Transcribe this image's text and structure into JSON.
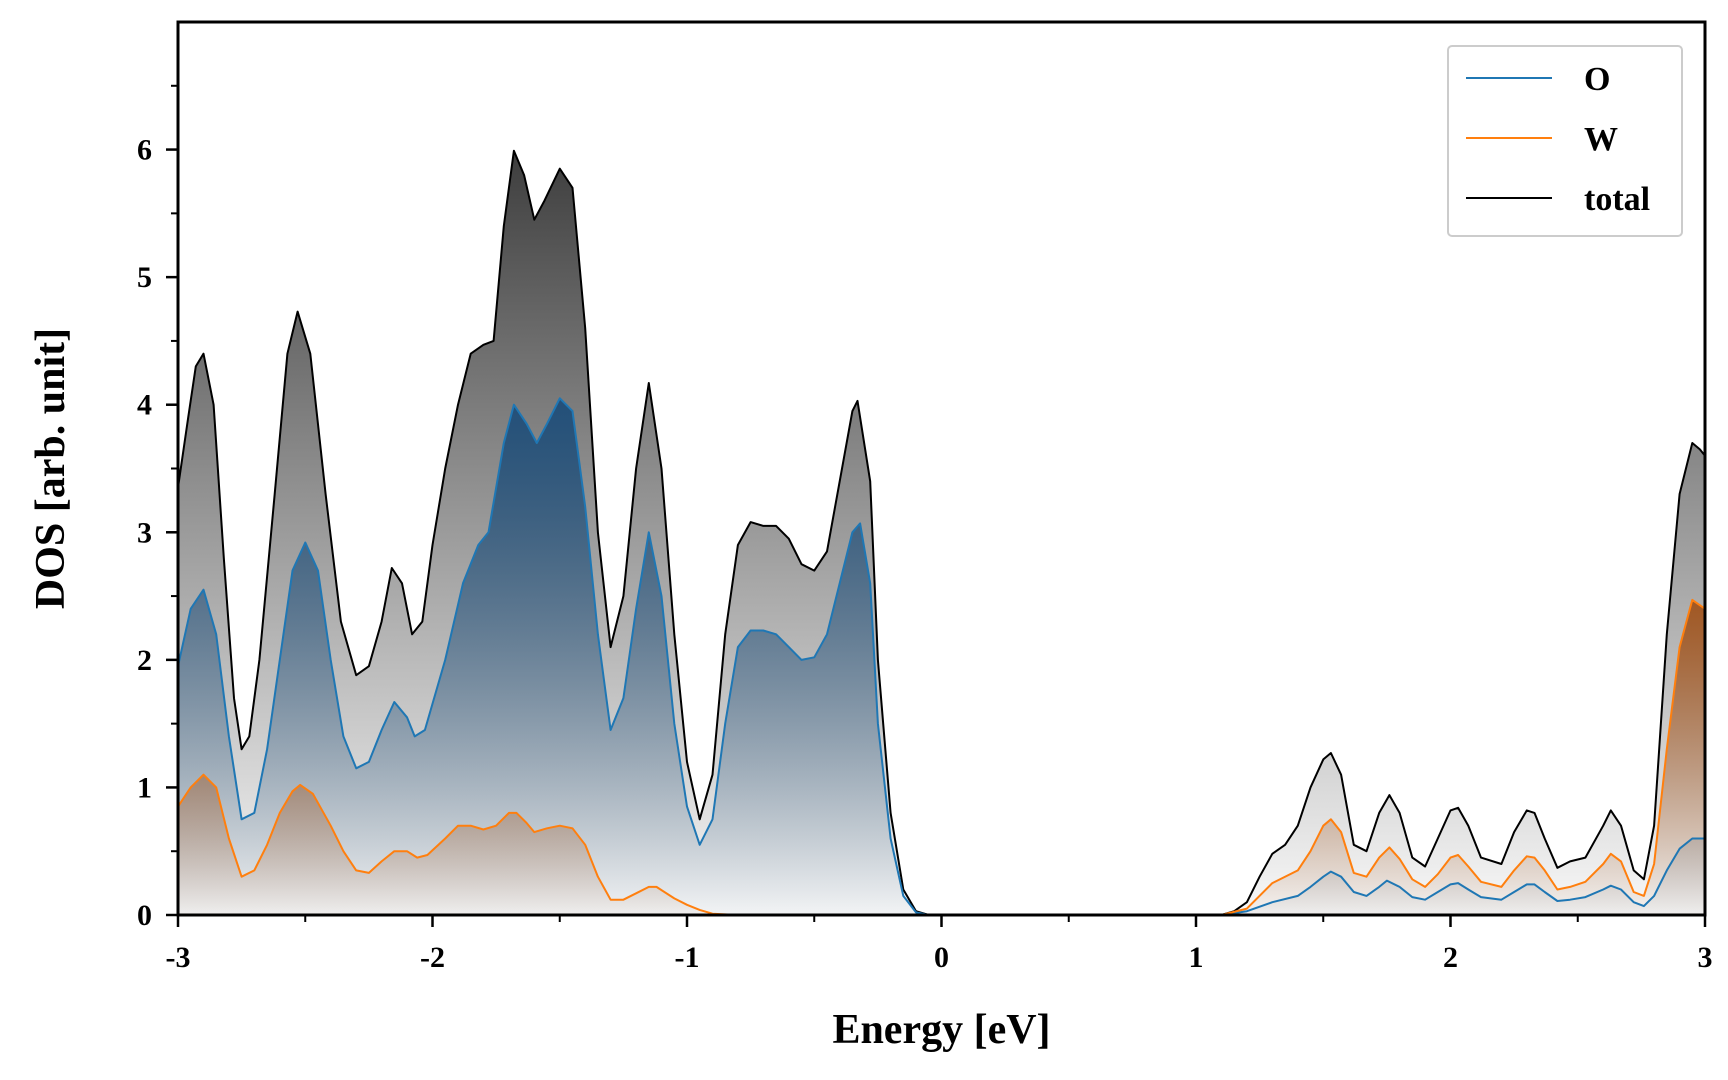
{
  "chart_data": {
    "type": "area",
    "xlabel": "Energy [eV]",
    "ylabel": "DOS [arb. unit]",
    "xlim": [
      -3,
      3
    ],
    "ylim": [
      0,
      7
    ],
    "x_ticks": [
      -3,
      -2,
      -1,
      0,
      1,
      2,
      3
    ],
    "x_tick_labels": [
      "-3",
      "-2",
      "-1",
      "0",
      "1",
      "2",
      "3"
    ],
    "y_ticks": [
      0,
      1,
      2,
      3,
      4,
      5,
      6
    ],
    "y_tick_labels": [
      "0",
      "1",
      "2",
      "3",
      "4",
      "5",
      "6"
    ],
    "grid": false,
    "legend_position": "top-right",
    "series": [
      {
        "name": "O",
        "color": "#1f77b4",
        "fill_color": "#1f4e79",
        "points": [
          [
            -3.0,
            1.95
          ],
          [
            -2.95,
            2.4
          ],
          [
            -2.9,
            2.55
          ],
          [
            -2.85,
            2.2
          ],
          [
            -2.8,
            1.4
          ],
          [
            -2.75,
            0.75
          ],
          [
            -2.7,
            0.8
          ],
          [
            -2.65,
            1.3
          ],
          [
            -2.6,
            2.0
          ],
          [
            -2.55,
            2.7
          ],
          [
            -2.5,
            2.92
          ],
          [
            -2.45,
            2.7
          ],
          [
            -2.4,
            2.0
          ],
          [
            -2.35,
            1.4
          ],
          [
            -2.3,
            1.15
          ],
          [
            -2.25,
            1.2
          ],
          [
            -2.2,
            1.45
          ],
          [
            -2.15,
            1.67
          ],
          [
            -2.1,
            1.55
          ],
          [
            -2.07,
            1.4
          ],
          [
            -2.03,
            1.45
          ],
          [
            -1.95,
            2.0
          ],
          [
            -1.88,
            2.6
          ],
          [
            -1.82,
            2.9
          ],
          [
            -1.78,
            3.0
          ],
          [
            -1.72,
            3.7
          ],
          [
            -1.68,
            4.0
          ],
          [
            -1.63,
            3.85
          ],
          [
            -1.59,
            3.7
          ],
          [
            -1.55,
            3.85
          ],
          [
            -1.5,
            4.05
          ],
          [
            -1.45,
            3.95
          ],
          [
            -1.4,
            3.2
          ],
          [
            -1.35,
            2.2
          ],
          [
            -1.3,
            1.45
          ],
          [
            -1.25,
            1.7
          ],
          [
            -1.2,
            2.4
          ],
          [
            -1.15,
            3.0
          ],
          [
            -1.1,
            2.5
          ],
          [
            -1.05,
            1.5
          ],
          [
            -1.0,
            0.85
          ],
          [
            -0.95,
            0.55
          ],
          [
            -0.9,
            0.75
          ],
          [
            -0.85,
            1.5
          ],
          [
            -0.8,
            2.1
          ],
          [
            -0.75,
            2.23
          ],
          [
            -0.7,
            2.23
          ],
          [
            -0.65,
            2.2
          ],
          [
            -0.6,
            2.1
          ],
          [
            -0.55,
            2.0
          ],
          [
            -0.5,
            2.02
          ],
          [
            -0.45,
            2.2
          ],
          [
            -0.4,
            2.6
          ],
          [
            -0.35,
            3.0
          ],
          [
            -0.32,
            3.07
          ],
          [
            -0.28,
            2.6
          ],
          [
            -0.25,
            1.5
          ],
          [
            -0.2,
            0.6
          ],
          [
            -0.15,
            0.15
          ],
          [
            -0.1,
            0.02
          ],
          [
            -0.05,
            0.0
          ],
          [
            0.0,
            0.0
          ],
          [
            0.5,
            0.0
          ],
          [
            1.0,
            0.0
          ],
          [
            1.1,
            0.0
          ],
          [
            1.2,
            0.03
          ],
          [
            1.3,
            0.1
          ],
          [
            1.4,
            0.15
          ],
          [
            1.45,
            0.22
          ],
          [
            1.5,
            0.3
          ],
          [
            1.53,
            0.34
          ],
          [
            1.57,
            0.3
          ],
          [
            1.62,
            0.18
          ],
          [
            1.67,
            0.15
          ],
          [
            1.72,
            0.22
          ],
          [
            1.75,
            0.27
          ],
          [
            1.8,
            0.22
          ],
          [
            1.85,
            0.14
          ],
          [
            1.9,
            0.12
          ],
          [
            1.95,
            0.18
          ],
          [
            2.0,
            0.24
          ],
          [
            2.03,
            0.25
          ],
          [
            2.07,
            0.2
          ],
          [
            2.12,
            0.14
          ],
          [
            2.2,
            0.12
          ],
          [
            2.25,
            0.18
          ],
          [
            2.3,
            0.24
          ],
          [
            2.33,
            0.24
          ],
          [
            2.37,
            0.18
          ],
          [
            2.42,
            0.11
          ],
          [
            2.47,
            0.12
          ],
          [
            2.53,
            0.14
          ],
          [
            2.6,
            0.2
          ],
          [
            2.63,
            0.23
          ],
          [
            2.67,
            0.2
          ],
          [
            2.72,
            0.1
          ],
          [
            2.76,
            0.07
          ],
          [
            2.8,
            0.15
          ],
          [
            2.85,
            0.35
          ],
          [
            2.9,
            0.52
          ],
          [
            2.95,
            0.6
          ],
          [
            3.0,
            0.6
          ]
        ]
      },
      {
        "name": "W",
        "color": "#ff7f0e",
        "fill_color": "#a0521a",
        "points": [
          [
            -3.0,
            0.85
          ],
          [
            -2.95,
            1.0
          ],
          [
            -2.9,
            1.1
          ],
          [
            -2.85,
            1.0
          ],
          [
            -2.8,
            0.6
          ],
          [
            -2.75,
            0.3
          ],
          [
            -2.7,
            0.35
          ],
          [
            -2.65,
            0.55
          ],
          [
            -2.6,
            0.8
          ],
          [
            -2.55,
            0.97
          ],
          [
            -2.52,
            1.02
          ],
          [
            -2.47,
            0.95
          ],
          [
            -2.4,
            0.7
          ],
          [
            -2.35,
            0.5
          ],
          [
            -2.3,
            0.35
          ],
          [
            -2.25,
            0.33
          ],
          [
            -2.2,
            0.42
          ],
          [
            -2.15,
            0.5
          ],
          [
            -2.1,
            0.5
          ],
          [
            -2.06,
            0.45
          ],
          [
            -2.02,
            0.47
          ],
          [
            -1.95,
            0.6
          ],
          [
            -1.9,
            0.7
          ],
          [
            -1.85,
            0.7
          ],
          [
            -1.8,
            0.67
          ],
          [
            -1.75,
            0.7
          ],
          [
            -1.7,
            0.8
          ],
          [
            -1.67,
            0.8
          ],
          [
            -1.63,
            0.72
          ],
          [
            -1.6,
            0.65
          ],
          [
            -1.55,
            0.68
          ],
          [
            -1.5,
            0.7
          ],
          [
            -1.45,
            0.68
          ],
          [
            -1.4,
            0.55
          ],
          [
            -1.35,
            0.3
          ],
          [
            -1.3,
            0.12
          ],
          [
            -1.25,
            0.12
          ],
          [
            -1.2,
            0.17
          ],
          [
            -1.15,
            0.22
          ],
          [
            -1.12,
            0.22
          ],
          [
            -1.05,
            0.13
          ],
          [
            -1.0,
            0.08
          ],
          [
            -0.95,
            0.04
          ],
          [
            -0.9,
            0.01
          ],
          [
            -0.8,
            0.0
          ],
          [
            -0.6,
            0.0
          ],
          [
            0.0,
            0.0
          ],
          [
            1.0,
            0.0
          ],
          [
            1.1,
            0.0
          ],
          [
            1.2,
            0.05
          ],
          [
            1.3,
            0.25
          ],
          [
            1.4,
            0.35
          ],
          [
            1.45,
            0.5
          ],
          [
            1.5,
            0.7
          ],
          [
            1.53,
            0.75
          ],
          [
            1.57,
            0.65
          ],
          [
            1.62,
            0.33
          ],
          [
            1.67,
            0.3
          ],
          [
            1.72,
            0.45
          ],
          [
            1.76,
            0.53
          ],
          [
            1.8,
            0.44
          ],
          [
            1.85,
            0.28
          ],
          [
            1.9,
            0.22
          ],
          [
            1.95,
            0.32
          ],
          [
            2.0,
            0.45
          ],
          [
            2.03,
            0.47
          ],
          [
            2.07,
            0.38
          ],
          [
            2.12,
            0.26
          ],
          [
            2.2,
            0.22
          ],
          [
            2.25,
            0.35
          ],
          [
            2.3,
            0.46
          ],
          [
            2.33,
            0.45
          ],
          [
            2.37,
            0.35
          ],
          [
            2.42,
            0.2
          ],
          [
            2.47,
            0.22
          ],
          [
            2.53,
            0.26
          ],
          [
            2.6,
            0.4
          ],
          [
            2.63,
            0.48
          ],
          [
            2.67,
            0.42
          ],
          [
            2.72,
            0.18
          ],
          [
            2.76,
            0.15
          ],
          [
            2.8,
            0.4
          ],
          [
            2.85,
            1.3
          ],
          [
            2.9,
            2.1
          ],
          [
            2.95,
            2.47
          ],
          [
            3.0,
            2.4
          ]
        ]
      },
      {
        "name": "total",
        "color": "#000000",
        "fill_color": "#333333",
        "points": [
          [
            -3.0,
            3.35
          ],
          [
            -2.96,
            3.9
          ],
          [
            -2.93,
            4.3
          ],
          [
            -2.9,
            4.4
          ],
          [
            -2.86,
            4.0
          ],
          [
            -2.82,
            2.8
          ],
          [
            -2.78,
            1.7
          ],
          [
            -2.75,
            1.3
          ],
          [
            -2.72,
            1.4
          ],
          [
            -2.68,
            2.0
          ],
          [
            -2.62,
            3.3
          ],
          [
            -2.57,
            4.4
          ],
          [
            -2.53,
            4.73
          ],
          [
            -2.48,
            4.4
          ],
          [
            -2.42,
            3.3
          ],
          [
            -2.36,
            2.3
          ],
          [
            -2.3,
            1.88
          ],
          [
            -2.25,
            1.95
          ],
          [
            -2.2,
            2.3
          ],
          [
            -2.16,
            2.72
          ],
          [
            -2.12,
            2.6
          ],
          [
            -2.08,
            2.2
          ],
          [
            -2.04,
            2.3
          ],
          [
            -2.0,
            2.9
          ],
          [
            -1.95,
            3.5
          ],
          [
            -1.9,
            4.0
          ],
          [
            -1.85,
            4.4
          ],
          [
            -1.8,
            4.47
          ],
          [
            -1.76,
            4.5
          ],
          [
            -1.72,
            5.4
          ],
          [
            -1.68,
            5.99
          ],
          [
            -1.64,
            5.8
          ],
          [
            -1.6,
            5.45
          ],
          [
            -1.56,
            5.6
          ],
          [
            -1.5,
            5.85
          ],
          [
            -1.45,
            5.7
          ],
          [
            -1.4,
            4.6
          ],
          [
            -1.35,
            3.0
          ],
          [
            -1.3,
            2.1
          ],
          [
            -1.25,
            2.5
          ],
          [
            -1.2,
            3.5
          ],
          [
            -1.15,
            4.17
          ],
          [
            -1.1,
            3.5
          ],
          [
            -1.05,
            2.2
          ],
          [
            -1.0,
            1.2
          ],
          [
            -0.95,
            0.75
          ],
          [
            -0.9,
            1.1
          ],
          [
            -0.85,
            2.2
          ],
          [
            -0.8,
            2.9
          ],
          [
            -0.75,
            3.08
          ],
          [
            -0.7,
            3.05
          ],
          [
            -0.65,
            3.05
          ],
          [
            -0.6,
            2.95
          ],
          [
            -0.55,
            2.75
          ],
          [
            -0.5,
            2.7
          ],
          [
            -0.45,
            2.85
          ],
          [
            -0.4,
            3.4
          ],
          [
            -0.35,
            3.95
          ],
          [
            -0.33,
            4.03
          ],
          [
            -0.28,
            3.4
          ],
          [
            -0.25,
            2.0
          ],
          [
            -0.2,
            0.8
          ],
          [
            -0.15,
            0.2
          ],
          [
            -0.1,
            0.03
          ],
          [
            -0.05,
            0.0
          ],
          [
            0.0,
            0.0
          ],
          [
            1.0,
            0.0
          ],
          [
            1.1,
            0.0
          ],
          [
            1.15,
            0.03
          ],
          [
            1.2,
            0.1
          ],
          [
            1.25,
            0.3
          ],
          [
            1.3,
            0.48
          ],
          [
            1.35,
            0.55
          ],
          [
            1.4,
            0.7
          ],
          [
            1.45,
            1.0
          ],
          [
            1.5,
            1.22
          ],
          [
            1.53,
            1.27
          ],
          [
            1.57,
            1.1
          ],
          [
            1.62,
            0.55
          ],
          [
            1.67,
            0.5
          ],
          [
            1.72,
            0.8
          ],
          [
            1.76,
            0.94
          ],
          [
            1.8,
            0.8
          ],
          [
            1.85,
            0.45
          ],
          [
            1.9,
            0.38
          ],
          [
            1.95,
            0.6
          ],
          [
            2.0,
            0.82
          ],
          [
            2.03,
            0.84
          ],
          [
            2.07,
            0.7
          ],
          [
            2.12,
            0.45
          ],
          [
            2.2,
            0.4
          ],
          [
            2.25,
            0.65
          ],
          [
            2.3,
            0.82
          ],
          [
            2.33,
            0.8
          ],
          [
            2.37,
            0.6
          ],
          [
            2.42,
            0.37
          ],
          [
            2.47,
            0.42
          ],
          [
            2.53,
            0.45
          ],
          [
            2.6,
            0.7
          ],
          [
            2.63,
            0.82
          ],
          [
            2.67,
            0.7
          ],
          [
            2.72,
            0.35
          ],
          [
            2.76,
            0.28
          ],
          [
            2.8,
            0.7
          ],
          [
            2.85,
            2.2
          ],
          [
            2.9,
            3.3
          ],
          [
            2.95,
            3.7
          ],
          [
            2.98,
            3.65
          ],
          [
            3.0,
            3.6
          ]
        ]
      }
    ]
  }
}
